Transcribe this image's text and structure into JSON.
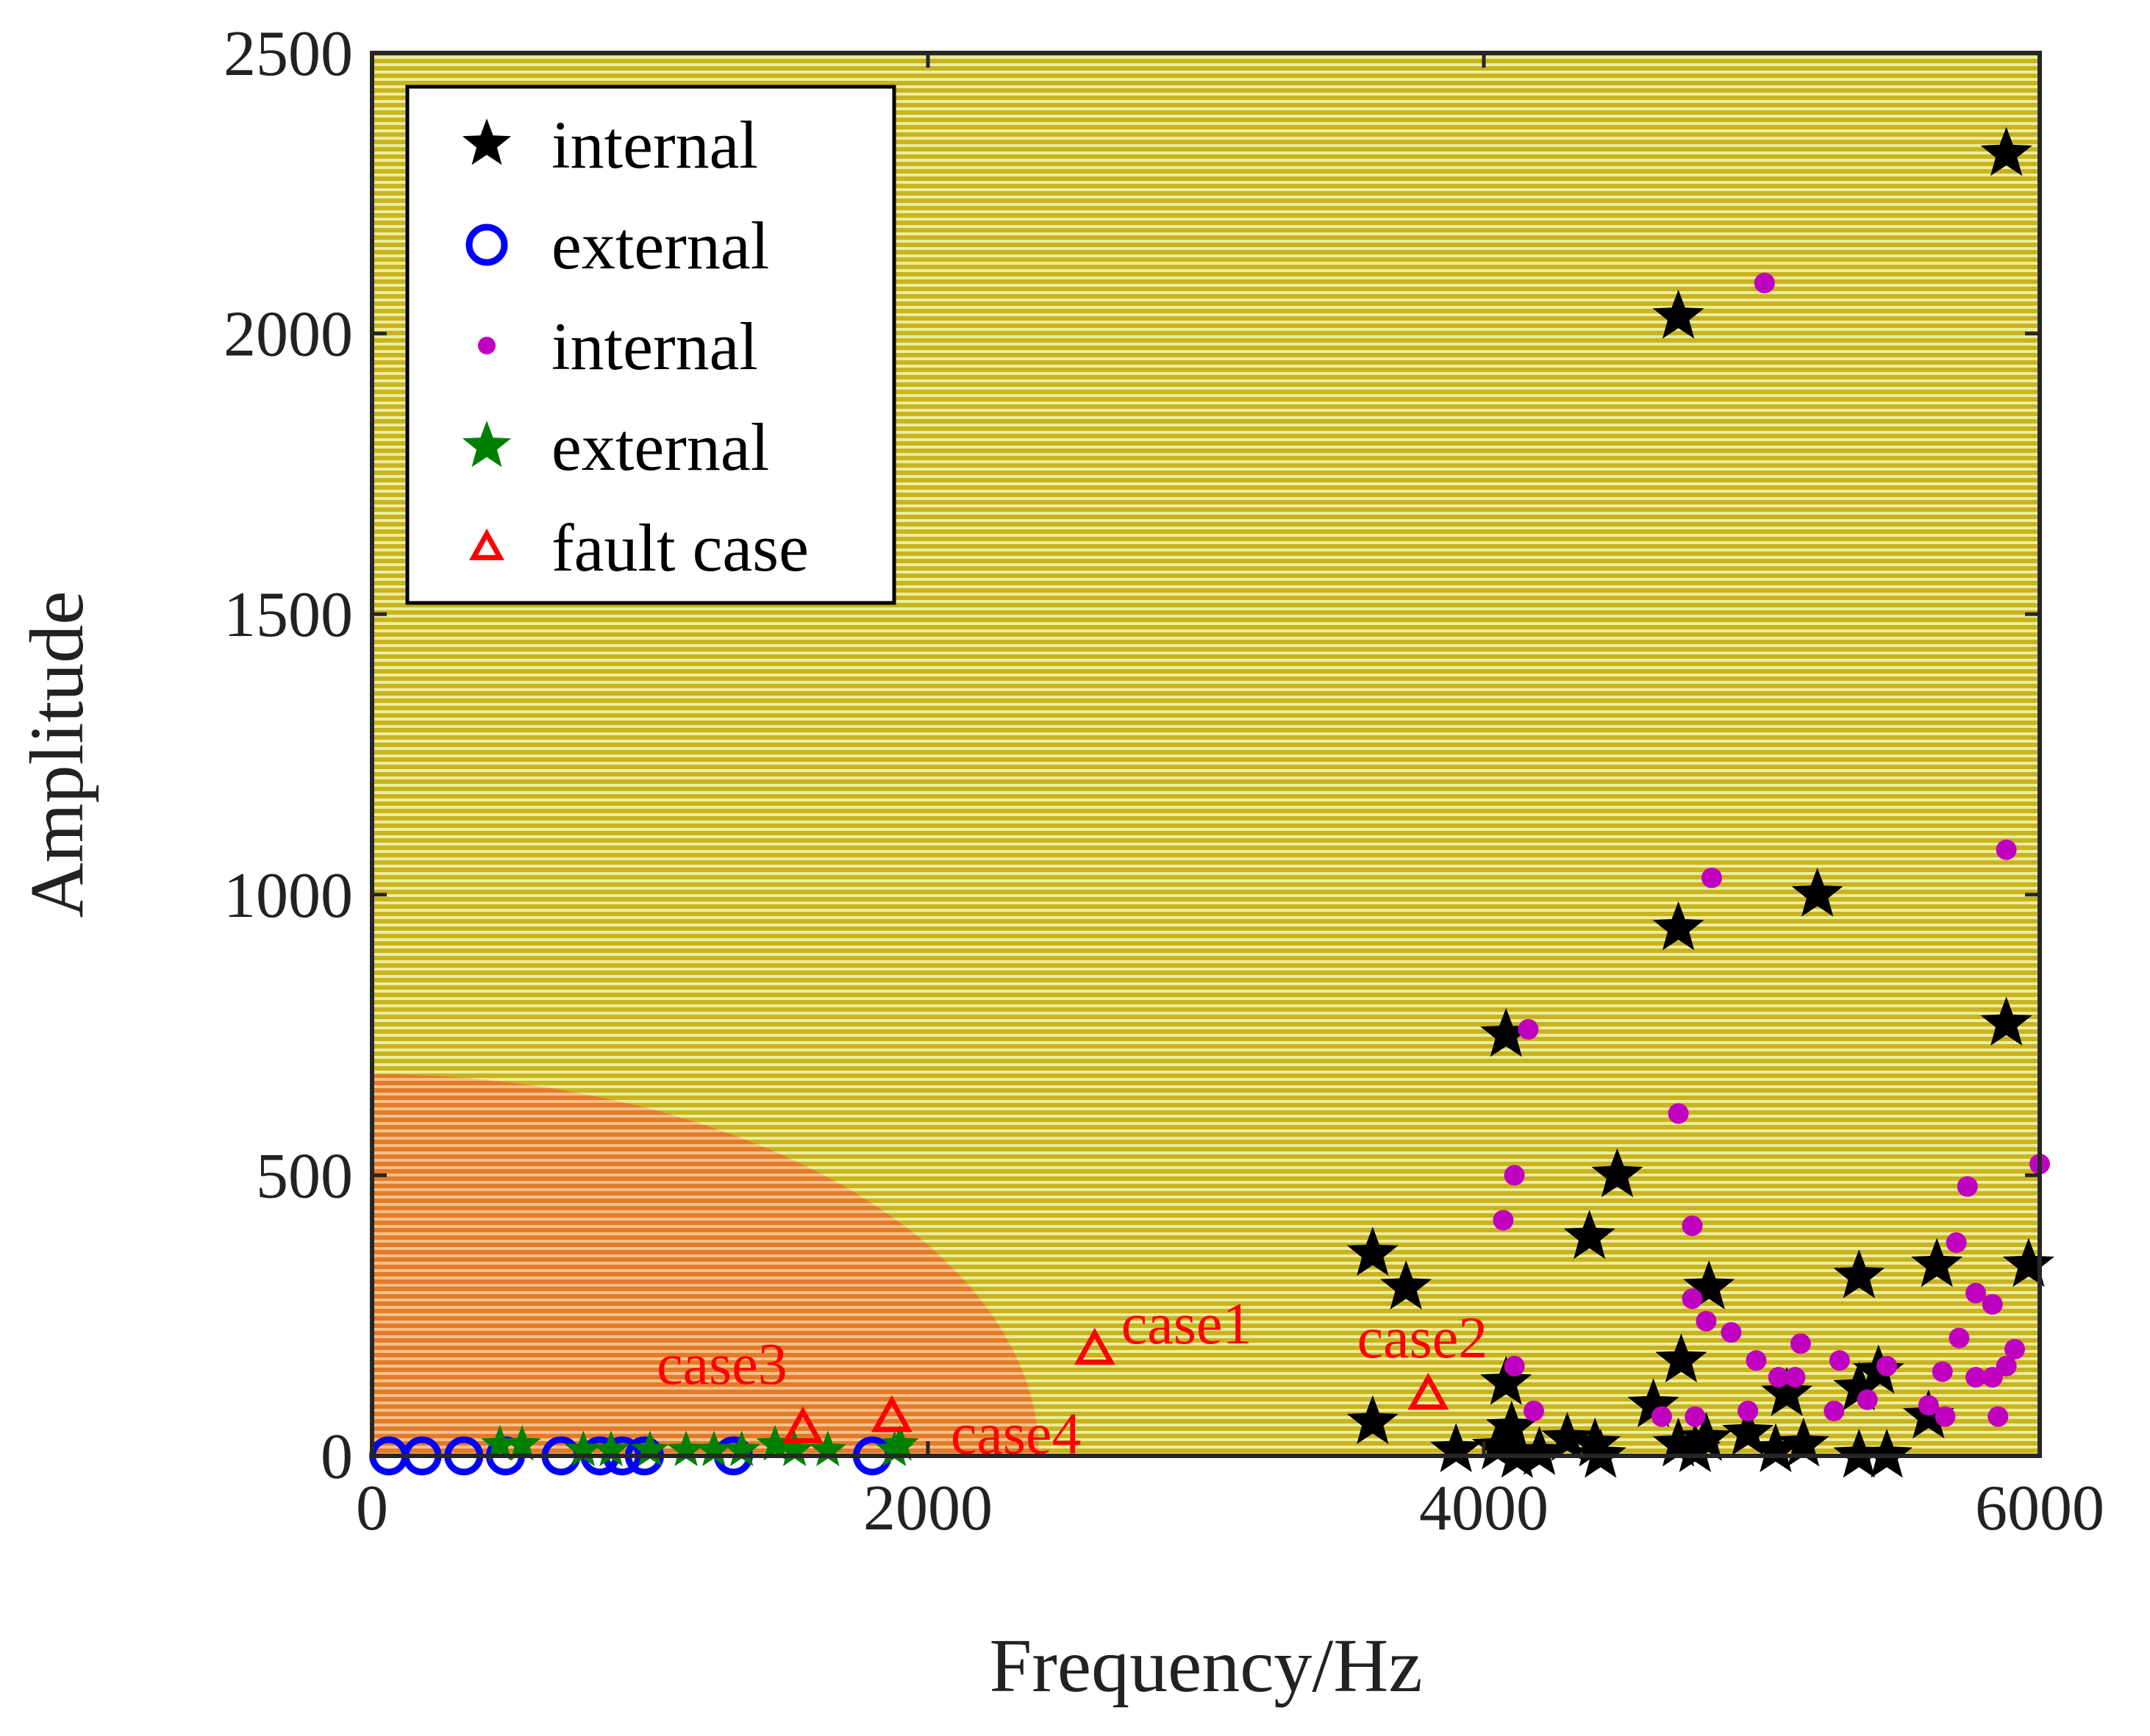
{
  "chart_data": {
    "type": "scatter",
    "title": "",
    "xlabel": "Frequency/Hz",
    "ylabel": "Amplitude",
    "xlim": [
      0,
      6000
    ],
    "ylim": [
      0,
      2500
    ],
    "xticks": [
      0,
      2000,
      4000,
      6000
    ],
    "yticks": [
      0,
      500,
      1000,
      1500,
      2000,
      2500
    ],
    "background_regions": [
      {
        "name": "internal region",
        "color": "#c8b41e"
      },
      {
        "name": "external region",
        "color": "#e37b2a",
        "description": "elliptical area near origin",
        "x_extent": 2400,
        "y_extent": 680
      }
    ],
    "legend": {
      "location": "top-left",
      "entries": [
        {
          "label": "internal",
          "marker": "star",
          "color": "#000000"
        },
        {
          "label": "external",
          "marker": "circle",
          "color": "#0000ff"
        },
        {
          "label": "internal",
          "marker": "dot",
          "color": "#c000c0"
        },
        {
          "label": "external",
          "marker": "star",
          "color": "#008000"
        },
        {
          "label": "fault case",
          "marker": "triangle",
          "color": "#ff0000"
        }
      ]
    },
    "series": [
      {
        "name": "internal",
        "marker": "star",
        "color": "#000000",
        "points": [
          [
            5880,
            2320
          ],
          [
            4700,
            2030
          ],
          [
            5200,
            1000
          ],
          [
            4700,
            940
          ],
          [
            5880,
            770
          ],
          [
            4080,
            750
          ],
          [
            4480,
            500
          ],
          [
            4380,
            390
          ],
          [
            3600,
            360
          ],
          [
            3720,
            300
          ],
          [
            4810,
            300
          ],
          [
            5960,
            340
          ],
          [
            5630,
            340
          ],
          [
            5350,
            320
          ],
          [
            4710,
            170
          ],
          [
            5420,
            150
          ],
          [
            4080,
            130
          ],
          [
            5350,
            120
          ],
          [
            5090,
            110
          ],
          [
            4610,
            90
          ],
          [
            5600,
            70
          ],
          [
            3600,
            60
          ],
          [
            4100,
            50
          ],
          [
            4300,
            30
          ],
          [
            4400,
            20
          ],
          [
            3900,
            10
          ],
          [
            4050,
            15
          ],
          [
            4200,
            5
          ],
          [
            4420,
            0
          ],
          [
            4700,
            20
          ],
          [
            4800,
            30
          ],
          [
            4950,
            40
          ],
          [
            5050,
            10
          ],
          [
            5150,
            20
          ],
          [
            5350,
            0
          ],
          [
            5450,
            0
          ],
          [
            4120,
            0
          ],
          [
            4760,
            10
          ]
        ]
      },
      {
        "name": "external",
        "marker": "circle",
        "color": "#0000ff",
        "points": [
          [
            60,
            0
          ],
          [
            180,
            0
          ],
          [
            330,
            0
          ],
          [
            480,
            0
          ],
          [
            680,
            0
          ],
          [
            820,
            0
          ],
          [
            900,
            0
          ],
          [
            980,
            0
          ],
          [
            1300,
            0
          ],
          [
            1800,
            0
          ]
        ]
      },
      {
        "name": "internal",
        "marker": "dot",
        "color": "#c000c0",
        "points": [
          [
            5010,
            2090
          ],
          [
            5880,
            1080
          ],
          [
            4820,
            1030
          ],
          [
            4160,
            760
          ],
          [
            4700,
            610
          ],
          [
            6000,
            520
          ],
          [
            4110,
            500
          ],
          [
            5740,
            480
          ],
          [
            4070,
            420
          ],
          [
            4750,
            410
          ],
          [
            5700,
            380
          ],
          [
            5770,
            290
          ],
          [
            5830,
            270
          ],
          [
            4750,
            280
          ],
          [
            4800,
            240
          ],
          [
            4890,
            220
          ],
          [
            5710,
            210
          ],
          [
            5140,
            200
          ],
          [
            5910,
            190
          ],
          [
            4980,
            170
          ],
          [
            5280,
            170
          ],
          [
            4110,
            160
          ],
          [
            5450,
            160
          ],
          [
            5880,
            160
          ],
          [
            5060,
            140
          ],
          [
            5120,
            140
          ],
          [
            5770,
            140
          ],
          [
            5830,
            140
          ],
          [
            5650,
            150
          ],
          [
            5380,
            100
          ],
          [
            5600,
            90
          ],
          [
            5260,
            80
          ],
          [
            4180,
            80
          ],
          [
            4760,
            70
          ],
          [
            4950,
            80
          ],
          [
            5660,
            70
          ],
          [
            5850,
            70
          ],
          [
            4640,
            70
          ]
        ]
      },
      {
        "name": "external",
        "marker": "star",
        "color": "#008000",
        "points": [
          [
            460,
            20
          ],
          [
            540,
            20
          ],
          [
            760,
            10
          ],
          [
            860,
            10
          ],
          [
            1000,
            10
          ],
          [
            1130,
            10
          ],
          [
            1230,
            10
          ],
          [
            1330,
            10
          ],
          [
            1450,
            20
          ],
          [
            1520,
            10
          ],
          [
            1640,
            10
          ],
          [
            1880,
            10
          ],
          [
            1900,
            20
          ]
        ]
      },
      {
        "name": "fault case",
        "marker": "triangle",
        "color": "#ff0000",
        "points": [
          [
            2600,
            190
          ],
          [
            3800,
            110
          ],
          [
            1550,
            50
          ],
          [
            1870,
            70
          ]
        ]
      }
    ],
    "annotations": [
      {
        "text": "case1",
        "x": 2600,
        "y": 190
      },
      {
        "text": "case2",
        "x": 3800,
        "y": 110
      },
      {
        "text": "case3",
        "x": 1550,
        "y": 50
      },
      {
        "text": "case4",
        "x": 1870,
        "y": 70
      }
    ]
  }
}
